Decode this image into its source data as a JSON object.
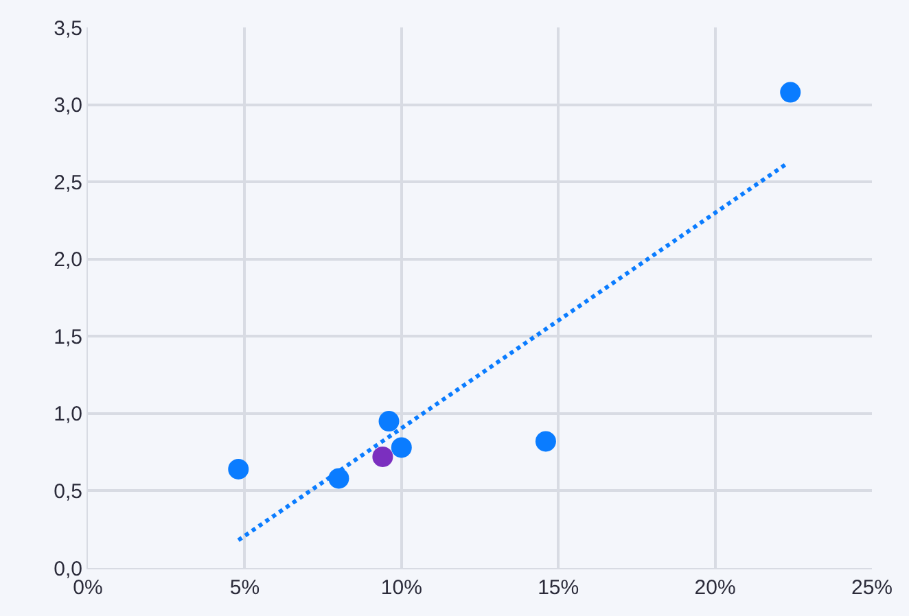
{
  "chart_data": {
    "type": "scatter",
    "grid": true,
    "xlim": [
      0,
      25
    ],
    "ylim": [
      0,
      3.5
    ],
    "xticks": [
      {
        "value": 0,
        "label": "0%"
      },
      {
        "value": 5,
        "label": "5%"
      },
      {
        "value": 10,
        "label": "10%"
      },
      {
        "value": 15,
        "label": "15%"
      },
      {
        "value": 20,
        "label": "20%"
      },
      {
        "value": 25,
        "label": "25%"
      }
    ],
    "yticks": [
      {
        "value": 0,
        "label": "0,0"
      },
      {
        "value": 0.5,
        "label": "0,5"
      },
      {
        "value": 1,
        "label": "1,0"
      },
      {
        "value": 1.5,
        "label": "1,5"
      },
      {
        "value": 2,
        "label": "2,0"
      },
      {
        "value": 2.5,
        "label": "2,5"
      },
      {
        "value": 3,
        "label": "3,0"
      },
      {
        "value": 3.5,
        "label": "3,5"
      }
    ],
    "series": [
      {
        "marker": "circle",
        "color": "#0a7cff",
        "x": [
          4.8,
          8.0,
          9.6,
          10.0,
          14.6,
          22.4
        ],
        "values": [
          0.64,
          0.58,
          0.95,
          0.78,
          0.82,
          3.08
        ]
      },
      {
        "marker": "circle",
        "color": "#7b2fbf",
        "x": [
          9.4
        ],
        "values": [
          0.72
        ]
      },
      {
        "type": "line",
        "color": "#0a7cff",
        "line_style": "dotted",
        "x": [
          4.8,
          22.3
        ],
        "values": [
          0.18,
          2.62
        ]
      }
    ]
  }
}
